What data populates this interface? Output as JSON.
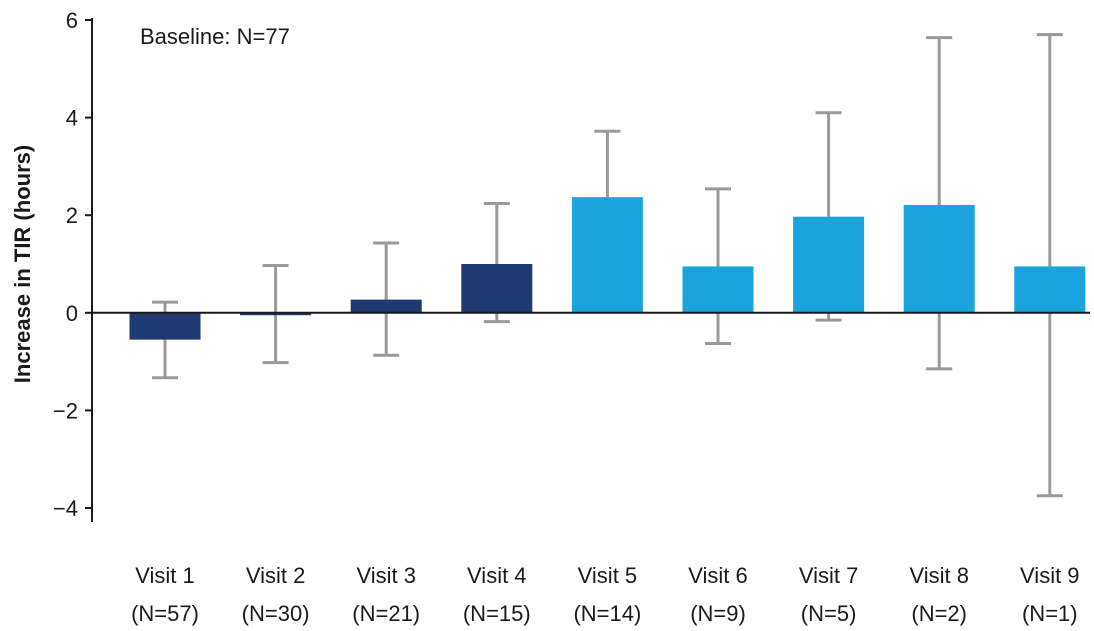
{
  "chart_data": {
    "type": "bar",
    "ylabel": "Increase in TIR (hours)",
    "ylim": [
      -4,
      6
    ],
    "yticks": [
      -4,
      -2,
      0,
      2,
      4,
      6
    ],
    "ytick_labels": [
      "−4",
      "−2",
      "0",
      "2",
      "4",
      "6"
    ],
    "annotation": "Baseline: N=77",
    "categories": [
      "Visit 1",
      "Visit 2",
      "Visit 3",
      "Visit 4",
      "Visit 5",
      "Visit 6",
      "Visit 7",
      "Visit 8",
      "Visit 9"
    ],
    "sample_sizes": [
      "(N=57)",
      "(N=30)",
      "(N=21)",
      "(N=15)",
      "(N=14)",
      "(N=9)",
      "(N=5)",
      "(N=2)",
      "(N=1)"
    ],
    "values": [
      -0.55,
      -0.05,
      0.27,
      1.0,
      2.37,
      0.95,
      1.97,
      2.21,
      0.95
    ],
    "error_low": [
      -1.33,
      -1.02,
      -0.87,
      -0.18,
      null,
      -0.63,
      -0.15,
      -1.15,
      -3.75
    ],
    "error_high": [
      0.22,
      0.97,
      1.43,
      2.24,
      3.72,
      2.54,
      4.1,
      5.64,
      5.7
    ],
    "bar_colors": [
      "#1f3a73",
      "#1f3a73",
      "#1f3a73",
      "#1f3a73",
      "#1aa3dd",
      "#1aa3dd",
      "#1aa3dd",
      "#1aa3dd",
      "#1aa3dd"
    ],
    "error_bar_color": "#9a9a9a",
    "grid": false,
    "legend": "none"
  }
}
